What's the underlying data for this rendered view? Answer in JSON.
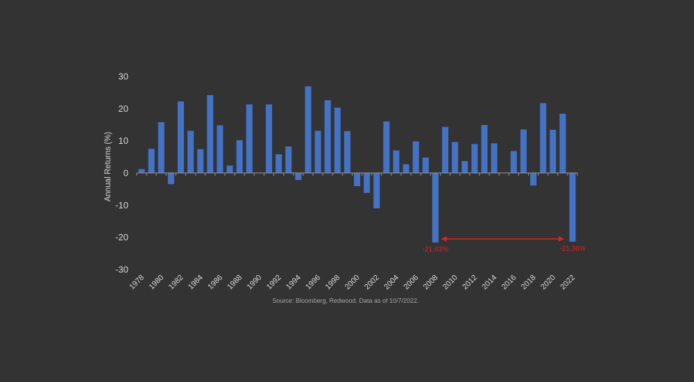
{
  "chart_data": {
    "type": "bar",
    "ylabel": "Annual Returns (%)",
    "ylim": [
      -30,
      30
    ],
    "yticks": [
      30,
      20,
      10,
      0,
      -10,
      -20,
      -30
    ],
    "categories": [
      "1978",
      "1979",
      "1980",
      "1981",
      "1982",
      "1983",
      "1984",
      "1985",
      "1986",
      "1987",
      "1988",
      "1989",
      "1990",
      "1991",
      "1992",
      "1993",
      "1994",
      "1995",
      "1996",
      "1997",
      "1998",
      "1999",
      "2000",
      "2001",
      "2002",
      "2003",
      "2004",
      "2005",
      "2006",
      "2007",
      "2008",
      "2009",
      "2010",
      "2011",
      "2012",
      "2013",
      "2014",
      "2015",
      "2016",
      "2017",
      "2018",
      "2019",
      "2020",
      "2021",
      "2022"
    ],
    "xtick_labels": [
      "1978",
      "1980",
      "1982",
      "1984",
      "1986",
      "1988",
      "1990",
      "1992",
      "1994",
      "1996",
      "1998",
      "2000",
      "2002",
      "2004",
      "2006",
      "2008",
      "2010",
      "2012",
      "2014",
      "2016",
      "2018",
      "2020",
      "2022"
    ],
    "values": [
      1.2,
      7.5,
      15.8,
      -3.5,
      22.2,
      13.1,
      7.4,
      24.2,
      14.8,
      2.3,
      10.2,
      21.3,
      0,
      21.3,
      5.8,
      8.2,
      -2.2,
      26.9,
      13.1,
      22.6,
      20.3,
      13.0,
      -4.1,
      -6.2,
      -11.0,
      16.0,
      7.0,
      2.7,
      9.8,
      4.8,
      -21.63,
      14.3,
      9.6,
      3.7,
      9.0,
      14.9,
      9.2,
      0,
      6.8,
      13.5,
      -3.9,
      21.7,
      13.4,
      18.4,
      -21.36
    ],
    "bar_color": "#4472C4",
    "annotations": [
      {
        "text": "-21.63%",
        "category": "2008",
        "color": "#E02020"
      },
      {
        "text": "-21.36%",
        "category": "2022",
        "color": "#E02020"
      }
    ],
    "arrow": {
      "from": "2009",
      "to": "2021",
      "y": -20.5,
      "color": "#E02020"
    },
    "source": "Source: Bloomberg, Redwood. Data as of 10/7/2022."
  }
}
